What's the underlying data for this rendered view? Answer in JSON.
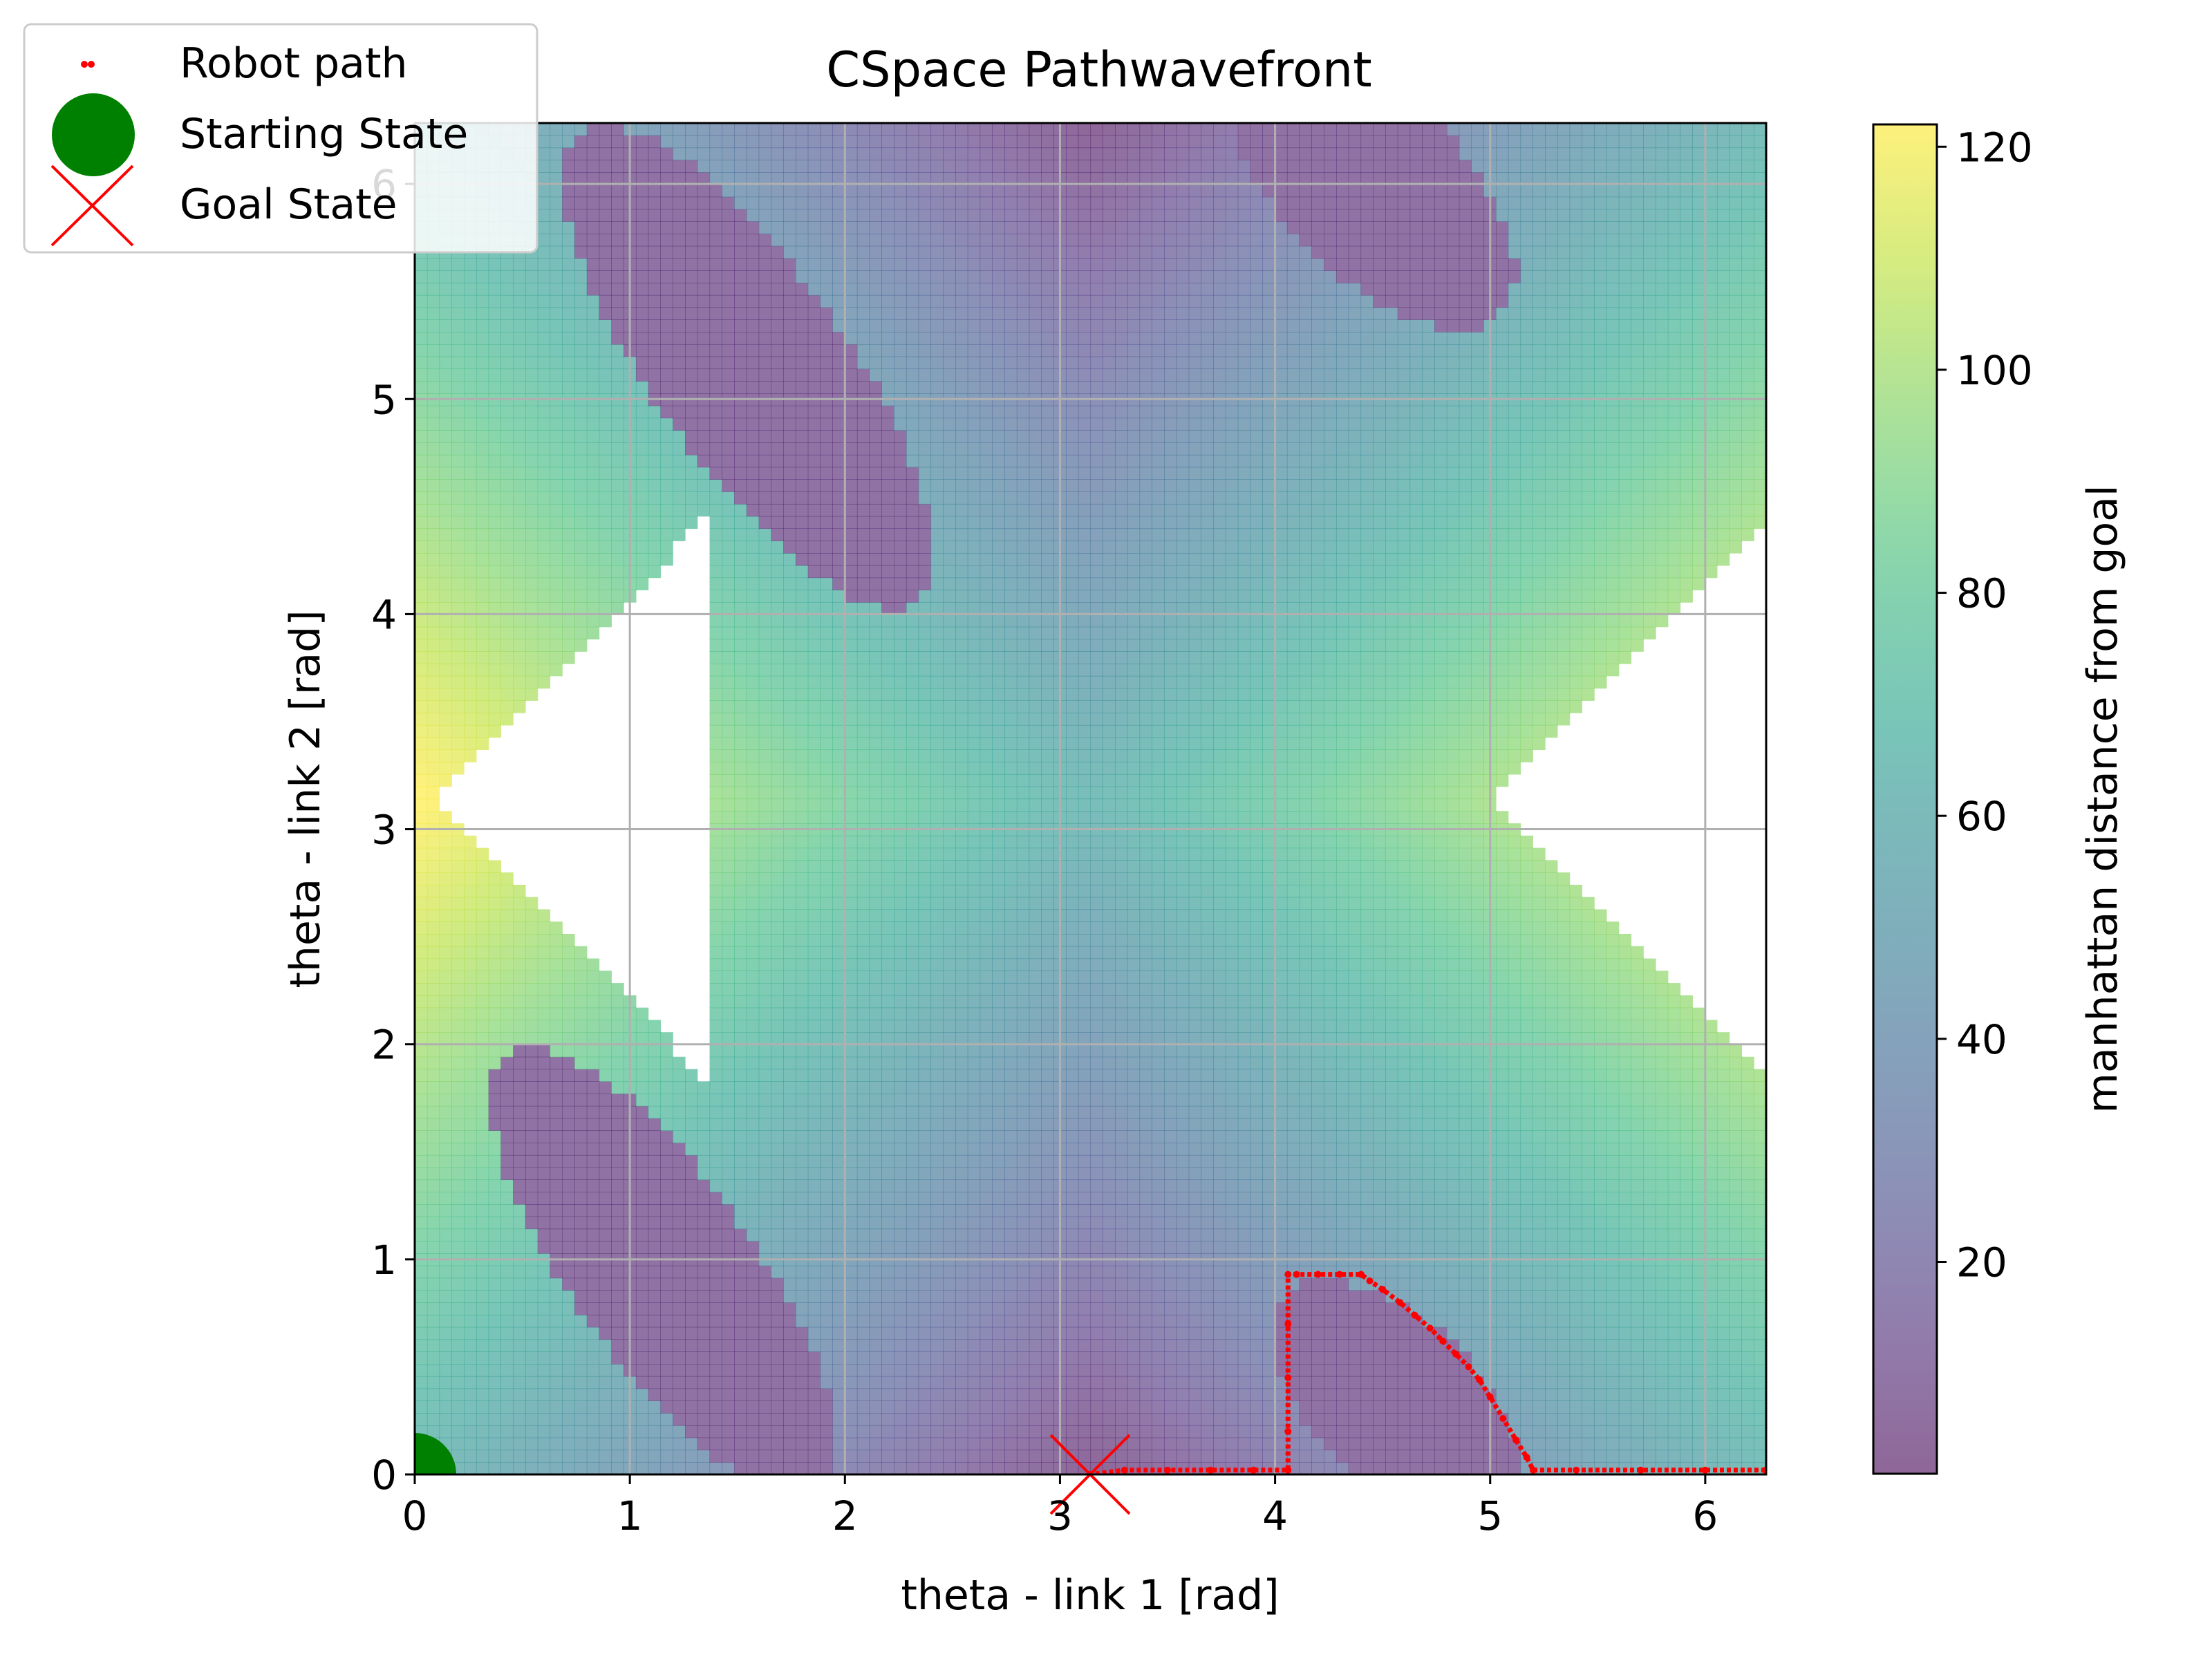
{
  "chart_data": {
    "type": "heatmap",
    "title": "CSpace Pathwavefront",
    "xlabel": "theta - link 1 [rad]",
    "ylabel": "theta - link 2 [rad]",
    "xlim": [
      0,
      6.2832
    ],
    "ylim": [
      0,
      6.2832
    ],
    "x_ticks": [
      "0",
      "1",
      "2",
      "3",
      "4",
      "5",
      "6"
    ],
    "y_ticks": [
      "0",
      "1",
      "2",
      "3",
      "4",
      "5",
      "6"
    ],
    "grid": true,
    "colormap": "viridis",
    "alpha": 0.6,
    "colorbar": {
      "label": "manhattan distance from goal",
      "range": [
        1,
        122
      ],
      "ticks": [
        "20",
        "40",
        "60",
        "80",
        "100",
        "120"
      ]
    },
    "value_field": "manhattan distance from goal on the free configuration grid; white cells are obstacle collisions (no value)",
    "legend": {
      "placement": "top-left",
      "entries": [
        {
          "label": "Robot path",
          "marker": "red small dots",
          "color": "#ff0000"
        },
        {
          "label": "Starting State",
          "marker": "green circle",
          "color": "#008000"
        },
        {
          "label": "Goal State",
          "marker": "red x",
          "color": "#ff0000"
        }
      ]
    },
    "start_state": {
      "x": 0.0,
      "y": 0.0
    },
    "goal_state": {
      "x": 3.14,
      "y": 0.0
    },
    "robot_path": [
      [
        6.28,
        0.02
      ],
      [
        6.0,
        0.02
      ],
      [
        5.7,
        0.02
      ],
      [
        5.4,
        0.02
      ],
      [
        5.2,
        0.02
      ],
      [
        5.17,
        0.08
      ],
      [
        5.12,
        0.16
      ],
      [
        5.06,
        0.26
      ],
      [
        5.0,
        0.36
      ],
      [
        4.95,
        0.44
      ],
      [
        4.9,
        0.5
      ],
      [
        4.84,
        0.56
      ],
      [
        4.78,
        0.62
      ],
      [
        4.72,
        0.68
      ],
      [
        4.65,
        0.74
      ],
      [
        4.58,
        0.8
      ],
      [
        4.5,
        0.86
      ],
      [
        4.44,
        0.9
      ],
      [
        4.4,
        0.93
      ],
      [
        4.3,
        0.93
      ],
      [
        4.2,
        0.93
      ],
      [
        4.1,
        0.93
      ],
      [
        4.06,
        0.93
      ],
      [
        4.06,
        0.7
      ],
      [
        4.06,
        0.45
      ],
      [
        4.06,
        0.2
      ],
      [
        4.06,
        0.02
      ],
      [
        3.9,
        0.02
      ],
      [
        3.7,
        0.02
      ],
      [
        3.5,
        0.02
      ],
      [
        3.3,
        0.02
      ],
      [
        3.14,
        0.0
      ]
    ]
  },
  "colors": {
    "path": "#ff0000",
    "start": "#008000",
    "goal": "#ff0000",
    "grid": "#b0b0b0",
    "viridis_low": "#440154",
    "viridis_mid": "#21918c",
    "viridis_high": "#fde725"
  }
}
